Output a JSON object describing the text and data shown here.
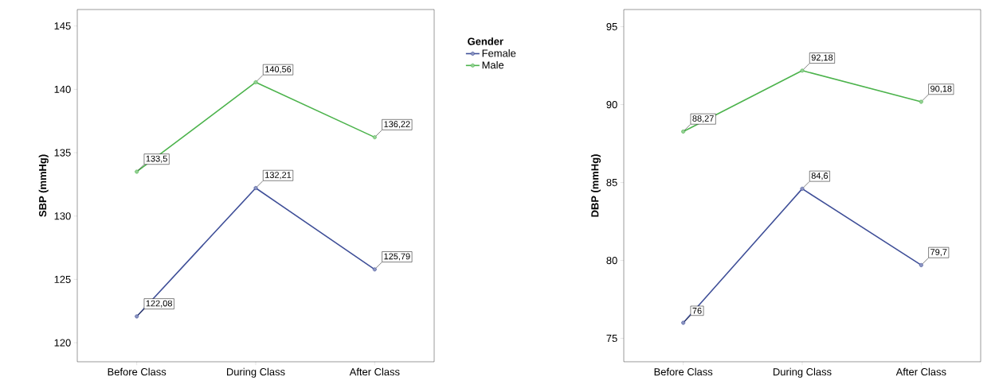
{
  "chart_data": [
    {
      "type": "line",
      "ylabel": "SBP (mmHg)",
      "categories": [
        "Before Class",
        "During Class",
        "After Class"
      ],
      "ylim": [
        118.5,
        146.3
      ],
      "yticks": [
        120,
        125,
        130,
        135,
        140,
        145
      ],
      "marker": "circle",
      "legend": "right",
      "legend_title": "Gender",
      "series": [
        {
          "name": "Female",
          "color": "#3f4f98",
          "values": [
            122.08,
            132.21,
            125.79
          ],
          "value_labels": [
            "122,08",
            "132,21",
            "125,79"
          ]
        },
        {
          "name": "Male",
          "color": "#4cb34c",
          "values": [
            133.5,
            140.56,
            136.22
          ],
          "value_labels": [
            "133,5",
            "140,56",
            "136,22"
          ]
        }
      ]
    },
    {
      "type": "line",
      "ylabel": "DBP (mmHg)",
      "categories": [
        "Before Class",
        "During Class",
        "After Class"
      ],
      "ylim": [
        73.5,
        96.1
      ],
      "yticks": [
        75,
        80,
        85,
        90,
        95
      ],
      "marker": "circle",
      "series": [
        {
          "color": "#3f4f98",
          "values": [
            76,
            84.6,
            79.7
          ],
          "value_labels": [
            "76",
            "84,6",
            "79,7"
          ]
        },
        {
          "color": "#4cb34c",
          "values": [
            88.27,
            92.18,
            90.18
          ],
          "value_labels": [
            "88,27",
            "92,18",
            "90,18"
          ]
        }
      ]
    }
  ]
}
